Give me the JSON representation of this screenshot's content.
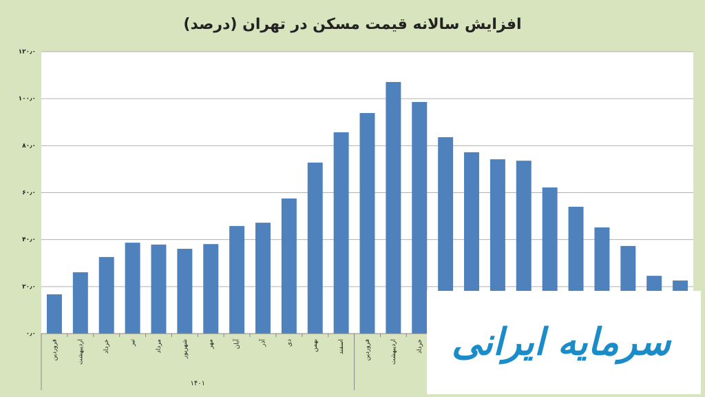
{
  "chart_data": {
    "type": "bar",
    "title": "افزایش سالانه قیمت مسکن در تهران (درصد)",
    "categories": [
      "فروردین",
      "اردیبهشت",
      "خرداد",
      "تیر",
      "مرداد",
      "شهریور",
      "مهر",
      "آبان",
      "آذر",
      "دی",
      "بهمن",
      "اسفند",
      "فروردین",
      "اردیبهشت",
      "خرداد",
      null,
      null,
      null,
      null,
      null,
      null,
      null,
      null,
      null,
      null
    ],
    "groups": [
      {
        "label": "۱۴۰۱",
        "count": 12
      }
    ],
    "values": [
      16.7,
      26.1,
      32.6,
      38.7,
      37.9,
      36.1,
      38.1,
      45.8,
      47.2,
      57.5,
      72.8,
      85.7,
      93.9,
      107.1,
      98.6,
      83.6,
      77.2,
      74.2,
      73.6,
      62.2,
      54.0,
      45.2,
      37.3,
      24.6,
      22.6
    ],
    "color": "#4f81bd",
    "ylim": [
      0,
      120
    ],
    "yticks": [
      {
        "value": 0,
        "label": "۰٫۰"
      },
      {
        "value": 20,
        "label": "۲۰٫۰"
      },
      {
        "value": 40,
        "label": "۴۰٫۰"
      },
      {
        "value": 60,
        "label": "۶۰٫۰"
      },
      {
        "value": 80,
        "label": "۸۰٫۰"
      },
      {
        "value": 100,
        "label": "۱۰۰٫۰"
      },
      {
        "value": 120,
        "label": "۱۲۰٫۰"
      }
    ],
    "grid": true
  },
  "watermark": "سرمایه ایرانی"
}
